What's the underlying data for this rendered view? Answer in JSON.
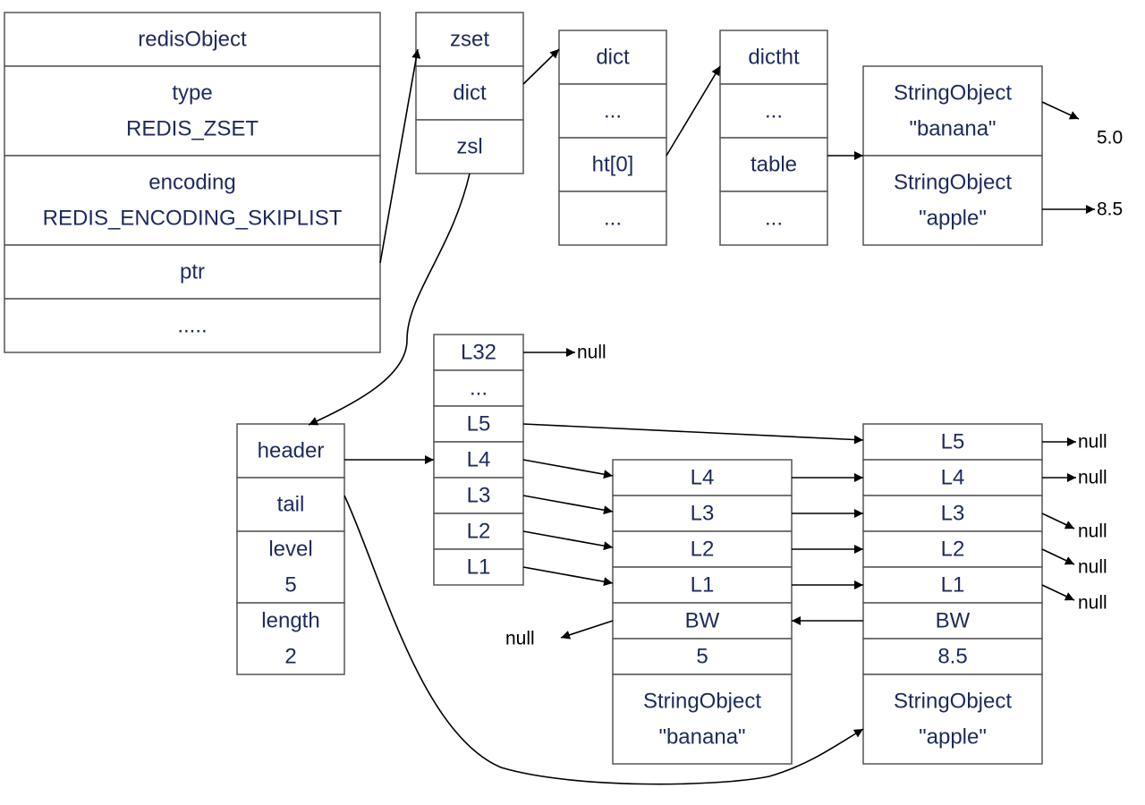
{
  "colors": {
    "text": "#1d2a5c",
    "border": "#555555",
    "arrow": "#000000"
  },
  "redis_object": {
    "title": "redisObject",
    "type_label": "type",
    "type_value": "REDIS_ZSET",
    "encoding_label": "encoding",
    "encoding_value": "REDIS_ENCODING_SKIPLIST",
    "ptr": "ptr",
    "more": "....."
  },
  "zset": {
    "title": "zset",
    "dict": "dict",
    "zsl": "zsl"
  },
  "dict": {
    "title": "dict",
    "ellipsis_1": "...",
    "ht0": "ht[0]",
    "ellipsis_2": "..."
  },
  "dictht": {
    "title": "dictht",
    "ellipsis_1": "...",
    "table": "table",
    "ellipsis_2": "..."
  },
  "dict_entries": {
    "banana_line1": "StringObject",
    "banana_line2": "\"banana\"",
    "apple_line1": "StringObject",
    "apple_line2": "\"apple\"",
    "banana_score": "5.0",
    "apple_score": "8.5"
  },
  "skiplist": {
    "header": "header",
    "tail": "tail",
    "level_label": "level",
    "level_value": "5",
    "length_label": "length",
    "length_value": "2"
  },
  "header_node": {
    "levels": [
      "L32",
      "...",
      "L5",
      "L4",
      "L3",
      "L2",
      "L1"
    ],
    "null_label": "null"
  },
  "node_banana": {
    "levels": [
      "L4",
      "L3",
      "L2",
      "L1"
    ],
    "backward": "BW",
    "score": "5",
    "obj_line1": "StringObject",
    "obj_line2": "\"banana\"",
    "bw_null": "null"
  },
  "node_apple": {
    "levels": [
      "L5",
      "L4",
      "L3",
      "L2",
      "L1"
    ],
    "backward": "BW",
    "score": "8.5",
    "obj_line1": "StringObject",
    "obj_line2": "\"apple\"",
    "null_labels": [
      "null",
      "null",
      "null",
      "null",
      "null"
    ]
  }
}
